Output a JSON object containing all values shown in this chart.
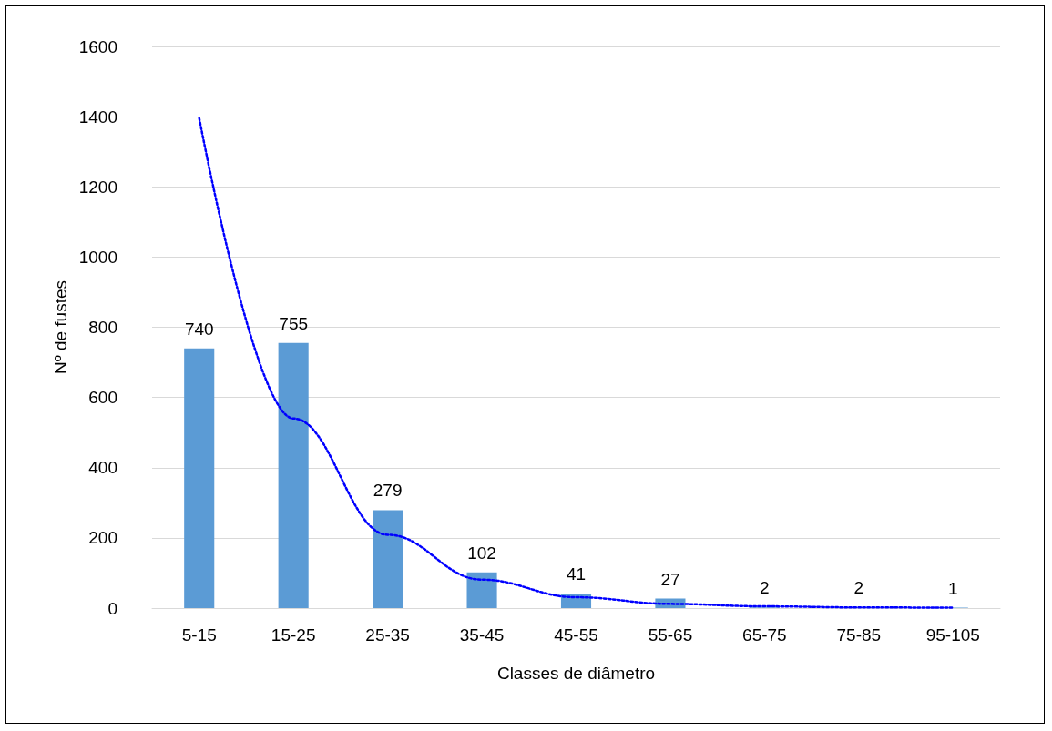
{
  "chart_data": {
    "type": "bar",
    "xlabel": "Classes de diâmetro",
    "ylabel": "Nº de fustes",
    "categories": [
      "5-15",
      "15-25",
      "25-35",
      "35-45",
      "45-55",
      "55-65",
      "65-75",
      "75-85",
      "95-105"
    ],
    "ylim": [
      0,
      1600
    ],
    "yticks": [
      0,
      200,
      400,
      600,
      800,
      1000,
      1200,
      1400,
      1600
    ],
    "grid": "y",
    "series": [
      {
        "color": "#5b9bd5",
        "data_labels": true,
        "values": [
          740,
          755,
          279,
          102,
          41,
          27,
          2,
          2,
          1
        ]
      },
      {
        "type": "line",
        "color": "#0000ff",
        "line_style": "dotted",
        "marker": "none",
        "values": [
          1396,
          540,
          209,
          81,
          31,
          12,
          5,
          2,
          1
        ]
      }
    ]
  }
}
